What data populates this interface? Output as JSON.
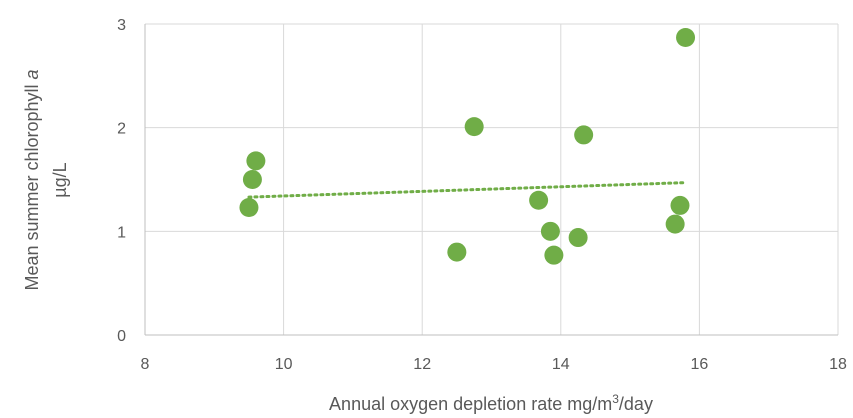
{
  "chart_data": {
    "type": "scatter",
    "xlabel": "Annual oxygen depletion rate mg/m",
    "xlabel_sup": "3",
    "xlabel_tail": "/day",
    "ylabel_line1_main": "Mean summer chlorophyll ",
    "ylabel_line1_italic": "a",
    "ylabel_line2": "µg/L",
    "xlim": [
      8,
      18
    ],
    "ylim": [
      0,
      3
    ],
    "xticks": [
      8,
      10,
      12,
      14,
      16,
      18
    ],
    "yticks": [
      0,
      1,
      2,
      3
    ],
    "grid": true,
    "legend": "none",
    "series": [
      {
        "color": "#70AD47",
        "points": [
          {
            "x": 9.5,
            "y": 1.23
          },
          {
            "x": 9.55,
            "y": 1.5
          },
          {
            "x": 9.6,
            "y": 1.68
          },
          {
            "x": 12.5,
            "y": 0.8
          },
          {
            "x": 12.75,
            "y": 2.01
          },
          {
            "x": 13.68,
            "y": 1.3
          },
          {
            "x": 13.85,
            "y": 1.0
          },
          {
            "x": 13.9,
            "y": 0.77
          },
          {
            "x": 14.25,
            "y": 0.94
          },
          {
            "x": 14.33,
            "y": 1.93
          },
          {
            "x": 15.65,
            "y": 1.07
          },
          {
            "x": 15.72,
            "y": 1.25
          },
          {
            "x": 15.8,
            "y": 2.87
          }
        ]
      }
    ],
    "trendline": {
      "type": "linear",
      "style": "dotted",
      "color": "#70AD47",
      "start": {
        "x": 9.5,
        "y": 1.33
      },
      "end": {
        "x": 15.8,
        "y": 1.47
      }
    }
  }
}
